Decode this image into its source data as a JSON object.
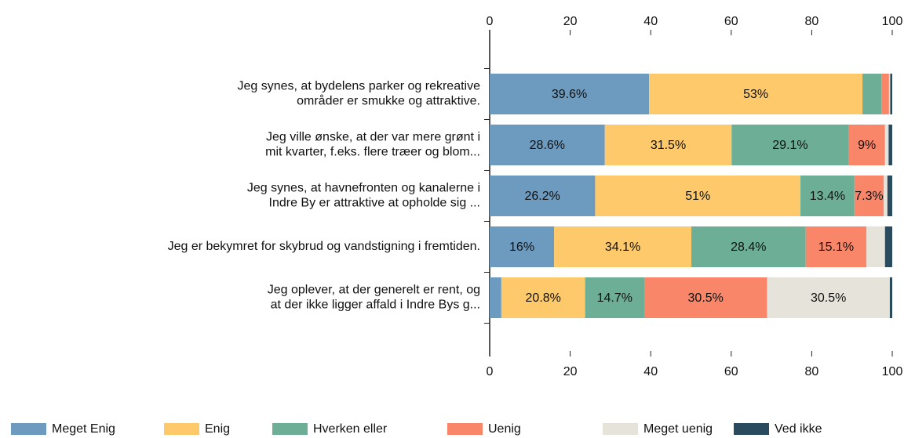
{
  "chart_data": {
    "type": "stacked_barh",
    "categories": [
      [
        "Jeg synes, at bydelens parker og rekreative",
        "områder er smukke og attraktive."
      ],
      [
        "Jeg ville ønske, at der var mere grønt i",
        "mit kvarter, f.eks. flere træer og blom..."
      ],
      [
        "Jeg synes, at havnefronten og kanalerne i",
        "Indre By er attraktive at opholde sig ..."
      ],
      [
        "Jeg er bekymret for skybrud og vandstigning i fremtiden."
      ],
      [
        "Jeg oplever, at der generelt er rent, og",
        "at der ikke ligger affald i Indre Bys g..."
      ]
    ],
    "series": [
      {
        "name": "Meget Enig",
        "color": "#6d9bbf",
        "values": [
          39.6,
          28.6,
          26.2,
          16,
          2.9
        ],
        "value_labels": [
          "39.6%",
          "28.6%",
          "26.2%",
          "16%",
          null
        ]
      },
      {
        "name": "Enig",
        "color": "#fdc96b",
        "values": [
          53,
          31.5,
          51,
          34.1,
          20.8
        ],
        "value_labels": [
          "53%",
          "31.5%",
          "51%",
          "34.1%",
          "20.8%"
        ]
      },
      {
        "name": "Hverken eller",
        "color": "#6caf96",
        "values": [
          4.7,
          29.1,
          13.4,
          28.4,
          14.7
        ],
        "value_labels": [
          null,
          "29.1%",
          "13.4%",
          "28.4%",
          "14.7%"
        ]
      },
      {
        "name": "Uenig",
        "color": "#f98669",
        "values": [
          1.9,
          9,
          7.3,
          15.1,
          30.5
        ],
        "value_labels": [
          null,
          "9%",
          "7.3%",
          "15.1%",
          "30.5%"
        ]
      },
      {
        "name": "Meget uenig",
        "color": "#e6e3da",
        "values": [
          0.3,
          0.9,
          0.9,
          4.6,
          30.5
        ],
        "value_labels": [
          null,
          null,
          null,
          null,
          "30.5%"
        ]
      },
      {
        "name": "Ved ikke",
        "color": "#2a4a5e",
        "values": [
          0.5,
          0.9,
          1.2,
          1.8,
          0.6
        ],
        "value_labels": [
          null,
          null,
          null,
          null,
          null
        ]
      }
    ],
    "xlim": [
      0,
      100
    ],
    "xticks": [
      0,
      20,
      40,
      60,
      80,
      100
    ],
    "legend": "bottom"
  }
}
